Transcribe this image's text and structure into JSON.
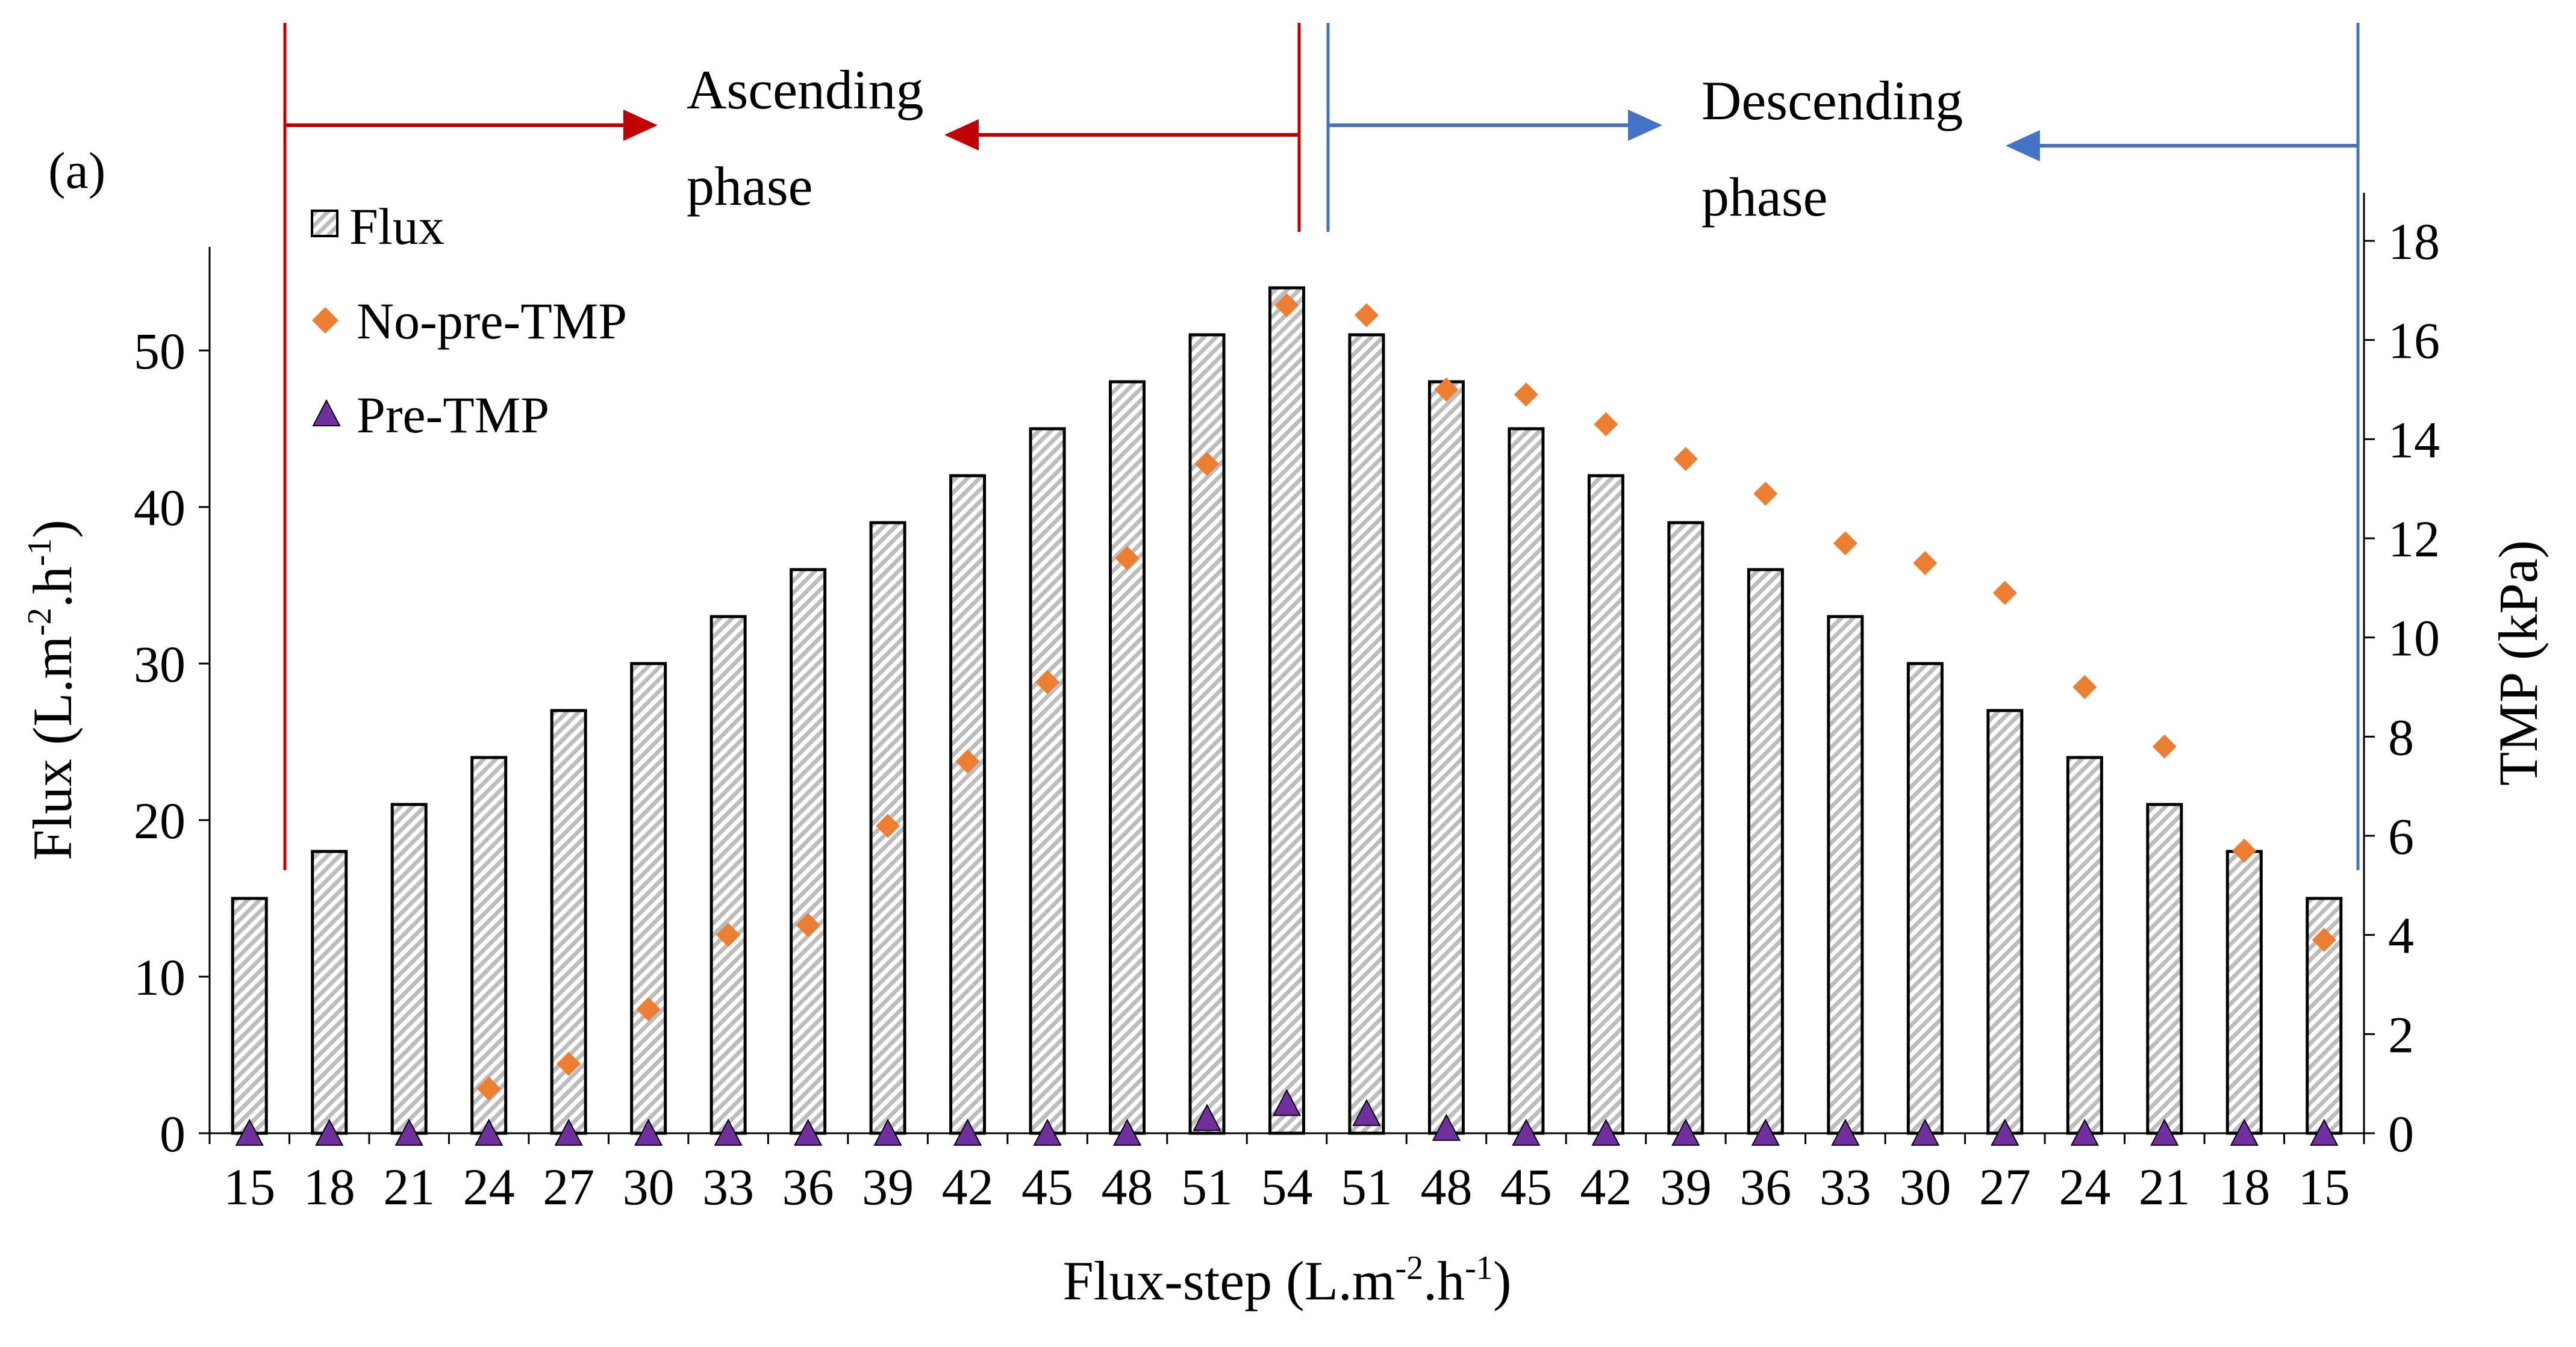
{
  "chart_data": {
    "type": "bar",
    "panel_label": "(a)",
    "categories": [
      "15",
      "18",
      "21",
      "24",
      "27",
      "30",
      "33",
      "36",
      "39",
      "42",
      "45",
      "48",
      "51",
      "54",
      "51",
      "48",
      "45",
      "42",
      "39",
      "36",
      "33",
      "30",
      "27",
      "24",
      "21",
      "18",
      "15"
    ],
    "series": [
      {
        "name": "Flux",
        "axis": "left",
        "kind": "bar",
        "values": [
          15,
          18,
          21,
          24,
          27,
          30,
          33,
          36,
          39,
          42,
          45,
          48,
          51,
          54,
          51,
          48,
          45,
          42,
          39,
          36,
          33,
          30,
          27,
          24,
          21,
          18,
          15
        ]
      },
      {
        "name": "No-pre-TMP",
        "axis": "right",
        "kind": "scatter",
        "marker": "diamond",
        "color": "#ED7D31",
        "values": [
          null,
          null,
          null,
          0.9,
          1.4,
          2.5,
          4.0,
          4.2,
          6.2,
          7.5,
          9.1,
          11.6,
          13.5,
          16.7,
          16.5,
          15.0,
          14.9,
          14.3,
          13.6,
          12.9,
          11.9,
          11.5,
          10.9,
          9.0,
          7.8,
          5.7,
          3.9
        ]
      },
      {
        "name": "Pre-TMP",
        "axis": "right",
        "kind": "scatter",
        "marker": "triangle",
        "color": "#7030A0",
        "values": [
          0,
          0,
          0,
          0,
          0,
          0,
          0,
          0,
          0,
          0,
          0,
          0,
          0.3,
          0.6,
          0.4,
          0.1,
          0,
          0,
          0,
          0,
          0,
          0,
          0,
          0,
          0,
          0,
          0
        ]
      }
    ],
    "y_left": {
      "label_main": "Flux (L.m",
      "sup1": "-2",
      "label_mid": ".h",
      "sup2": "-1",
      "label_end": ")",
      "min": 0,
      "max": 57,
      "ticks": [
        0,
        10,
        20,
        30,
        40,
        50
      ]
    },
    "y_right": {
      "label": "TMP (kPa)",
      "min": 0,
      "max": 18,
      "ticks": [
        0,
        2,
        4,
        6,
        8,
        10,
        12,
        14,
        16,
        18
      ]
    },
    "x_axis": {
      "label_main": "Flux-step (L.m",
      "sup1": "-2",
      "label_mid": ".h",
      "sup2": "-1",
      "label_end": ")"
    },
    "annotations": {
      "ascending": {
        "line1": "Ascending",
        "line2": "phase",
        "color": "#C00000"
      },
      "descending": {
        "line1": "Descending",
        "line2": "phase",
        "color": "#4472C4"
      }
    },
    "legend": {
      "position": "top-left",
      "entries": [
        "Flux",
        "No-pre-TMP",
        "Pre-TMP"
      ]
    }
  }
}
